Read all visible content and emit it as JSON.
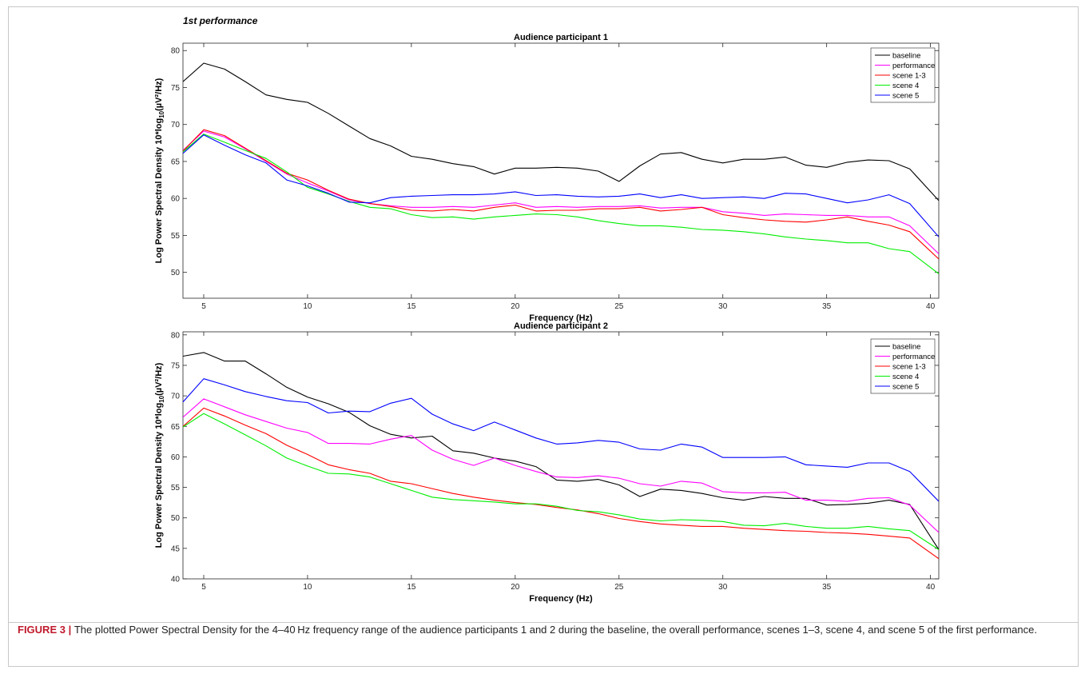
{
  "section_label": "1st performance",
  "caption": {
    "label": "FIGURE 3",
    "separator": " | ",
    "text": "The plotted Power Spectral Density for the 4–40 Hz frequency range of the audience participants 1 and 2 during the baseline, the overall performance, scenes 1–3, scene 4, and scene 5 of the first performance."
  },
  "chart_data": [
    {
      "type": "line",
      "title": "Audience participant 1",
      "xlabel": "Frequency (Hz)",
      "ylabel": "Log Power Spectral Density 10*log",
      "ylabel_sub": "10",
      "ylabel_tail": "(µV²/Hz)",
      "xlim": [
        4,
        40.4
      ],
      "ylim": [
        46.5,
        81
      ],
      "xticks": [
        5,
        10,
        15,
        20,
        25,
        30,
        35,
        40
      ],
      "yticks": [
        50,
        55,
        60,
        65,
        70,
        75,
        80
      ],
      "legend_position": "top-right",
      "x": [
        4,
        5,
        6,
        7,
        8,
        9,
        10,
        11,
        12,
        13,
        14,
        15,
        16,
        17,
        18,
        19,
        20,
        21,
        22,
        23,
        24,
        25,
        26,
        27,
        28,
        29,
        30,
        31,
        32,
        33,
        34,
        35,
        36,
        37,
        38,
        39,
        40.4
      ],
      "series": [
        {
          "name": "baseline",
          "color": "#000000",
          "values": [
            75.8,
            78.3,
            77.5,
            75.8,
            74.0,
            73.4,
            73.0,
            71.5,
            69.8,
            68.1,
            67.1,
            65.7,
            65.3,
            64.7,
            64.3,
            63.3,
            64.1,
            64.1,
            64.2,
            64.1,
            63.7,
            62.3,
            64.4,
            66.0,
            66.2,
            65.3,
            64.8,
            65.3,
            65.3,
            65.6,
            64.5,
            64.2,
            64.9,
            65.2,
            65.1,
            64.0,
            59.7
          ]
        },
        {
          "name": "performance",
          "color": "#ff00ff",
          "values": [
            66.5,
            69.1,
            68.3,
            66.7,
            65.0,
            63.3,
            62.1,
            61.0,
            59.8,
            59.3,
            59.0,
            58.8,
            58.8,
            58.9,
            58.8,
            59.1,
            59.4,
            58.8,
            58.9,
            58.8,
            58.9,
            58.9,
            59.0,
            58.7,
            58.8,
            58.8,
            58.2,
            58.0,
            57.7,
            57.9,
            57.8,
            57.7,
            57.7,
            57.5,
            57.5,
            56.3,
            52.5
          ]
        },
        {
          "name": "scene 1-3",
          "color": "#ff0000",
          "values": [
            66.4,
            69.3,
            68.5,
            66.8,
            65.1,
            63.4,
            62.5,
            61.1,
            59.9,
            59.3,
            58.9,
            58.4,
            58.3,
            58.5,
            58.3,
            58.8,
            59.1,
            58.3,
            58.4,
            58.4,
            58.6,
            58.6,
            58.8,
            58.3,
            58.5,
            58.8,
            57.8,
            57.4,
            57.1,
            56.9,
            56.8,
            57.1,
            57.5,
            56.9,
            56.4,
            55.5,
            51.8
          ]
        },
        {
          "name": "scene 4",
          "color": "#00ee00",
          "values": [
            66.3,
            68.7,
            67.6,
            66.5,
            65.4,
            63.6,
            61.5,
            60.6,
            59.6,
            58.8,
            58.6,
            57.8,
            57.4,
            57.5,
            57.2,
            57.5,
            57.7,
            57.9,
            57.8,
            57.5,
            57.0,
            56.6,
            56.3,
            56.3,
            56.1,
            55.8,
            55.7,
            55.5,
            55.2,
            54.8,
            54.5,
            54.3,
            54.0,
            54.0,
            53.2,
            52.8,
            49.8
          ]
        },
        {
          "name": "scene 5",
          "color": "#0000ff",
          "values": [
            66.1,
            68.6,
            67.2,
            65.9,
            64.8,
            62.5,
            61.7,
            60.7,
            59.5,
            59.4,
            60.1,
            60.3,
            60.4,
            60.5,
            60.5,
            60.6,
            60.9,
            60.4,
            60.5,
            60.3,
            60.2,
            60.3,
            60.6,
            60.1,
            60.5,
            60.0,
            60.1,
            60.2,
            60.0,
            60.7,
            60.6,
            60.0,
            59.4,
            59.8,
            60.5,
            59.3,
            54.8
          ]
        }
      ]
    },
    {
      "type": "line",
      "title": "Audience participant 2",
      "xlabel": "Frequency (Hz)",
      "ylabel": "Log Power Spectral Density 10*log",
      "ylabel_sub": "10",
      "ylabel_tail": "(µV²/Hz)",
      "xlim": [
        4,
        40.4
      ],
      "ylim": [
        40,
        80.5
      ],
      "xticks": [
        5,
        10,
        15,
        20,
        25,
        30,
        35,
        40
      ],
      "yticks": [
        40,
        45,
        50,
        55,
        60,
        65,
        70,
        75,
        80
      ],
      "legend_position": "top-right",
      "x": [
        4,
        5,
        6,
        7,
        8,
        9,
        10,
        11,
        12,
        13,
        14,
        15,
        16,
        17,
        18,
        19,
        20,
        21,
        22,
        23,
        24,
        25,
        26,
        27,
        28,
        29,
        30,
        31,
        32,
        33,
        34,
        35,
        36,
        37,
        38,
        39,
        40.4
      ],
      "series": [
        {
          "name": "baseline",
          "color": "#000000",
          "values": [
            76.5,
            77.1,
            75.7,
            75.7,
            73.6,
            71.4,
            69.8,
            68.7,
            67.3,
            65.1,
            63.7,
            63.1,
            63.4,
            61.0,
            60.6,
            59.8,
            59.3,
            58.4,
            56.2,
            56.0,
            56.3,
            55.4,
            53.5,
            54.7,
            54.5,
            54.0,
            53.3,
            52.9,
            53.5,
            53.2,
            53.2,
            52.1,
            52.2,
            52.4,
            52.9,
            52.2,
            44.8
          ]
        },
        {
          "name": "performance",
          "color": "#ff00ff",
          "values": [
            66.5,
            69.5,
            68.2,
            66.9,
            65.8,
            64.7,
            64.0,
            62.2,
            62.2,
            62.1,
            62.9,
            63.5,
            61.1,
            59.6,
            58.6,
            59.8,
            58.6,
            57.6,
            56.7,
            56.6,
            56.9,
            56.5,
            55.6,
            55.2,
            56.0,
            55.7,
            54.3,
            54.1,
            54.1,
            54.2,
            52.9,
            52.9,
            52.7,
            53.2,
            53.3,
            52.1,
            47.6
          ]
        },
        {
          "name": "scene 1-3",
          "color": "#ff0000",
          "values": [
            65.0,
            68.0,
            66.7,
            65.2,
            63.8,
            61.9,
            60.4,
            58.7,
            57.9,
            57.3,
            56.0,
            55.6,
            54.8,
            54.0,
            53.4,
            52.9,
            52.5,
            52.2,
            51.7,
            51.3,
            50.7,
            49.9,
            49.4,
            49.0,
            48.8,
            48.6,
            48.6,
            48.3,
            48.1,
            47.9,
            47.8,
            47.6,
            47.5,
            47.3,
            47.0,
            46.7,
            43.3
          ]
        },
        {
          "name": "scene 4",
          "color": "#00ee00",
          "values": [
            64.9,
            67.1,
            65.4,
            63.6,
            61.8,
            59.8,
            58.5,
            57.3,
            57.2,
            56.7,
            55.6,
            54.5,
            53.4,
            53.0,
            52.8,
            52.6,
            52.3,
            52.3,
            51.9,
            51.2,
            51.0,
            50.5,
            49.8,
            49.5,
            49.7,
            49.6,
            49.4,
            48.8,
            48.7,
            49.1,
            48.6,
            48.3,
            48.3,
            48.6,
            48.2,
            47.9,
            44.8
          ]
        },
        {
          "name": "scene 5",
          "color": "#0000ff",
          "values": [
            69.0,
            72.8,
            71.8,
            70.7,
            69.9,
            69.2,
            68.9,
            67.2,
            67.5,
            67.4,
            68.8,
            69.6,
            67.0,
            65.4,
            64.3,
            65.7,
            64.4,
            63.1,
            62.1,
            62.3,
            62.7,
            62.4,
            61.3,
            61.1,
            62.1,
            61.6,
            59.9,
            59.9,
            59.9,
            60.0,
            58.7,
            58.5,
            58.3,
            59.0,
            59.0,
            57.6,
            52.7
          ]
        }
      ]
    }
  ]
}
